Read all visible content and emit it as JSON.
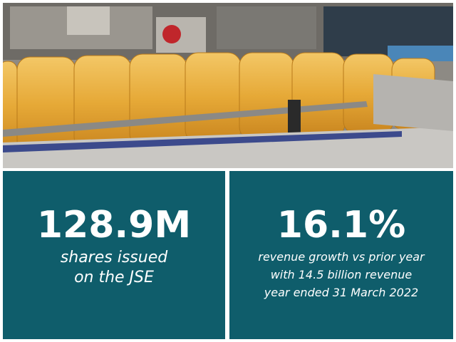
{
  "stats": [
    {
      "figure": "128.9M",
      "lines": [
        "shares issued",
        "on the JSE"
      ]
    },
    {
      "figure": "16.1%",
      "lines": [
        "revenue growth vs prior year",
        "with 14.5 billion revenue",
        "year ended 31 March 2022"
      ]
    }
  ]
}
